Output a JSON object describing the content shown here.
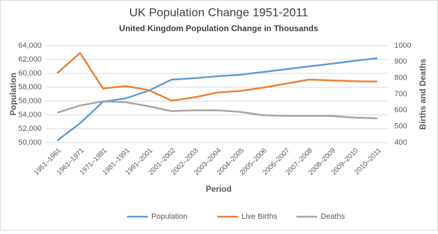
{
  "chart_data": {
    "type": "line",
    "title": "UK Population Change 1951-2011",
    "subtitle": "United Kingdom Population Change in Thousands",
    "x_label": "Period",
    "y_label": "Population",
    "y2_label": "Births and Deaths",
    "categories": [
      "1951–1961",
      "1961–1971",
      "1971–1981",
      "1981–1991",
      "1991–2001",
      "2001–2002",
      "2002–2003",
      "2003–2004",
      "2004–2005",
      "2005–2006",
      "2006–2007",
      "2007–2008",
      "2008–2009",
      "2009–2010",
      "2010–2011"
    ],
    "series": [
      {
        "name": "Population",
        "color": "#5b9bd5",
        "values": [
          50300,
          52800,
          55900,
          56400,
          57500,
          59100,
          59300,
          59600,
          59800,
          60200,
          60600,
          61000,
          61400,
          61800,
          62200
        ]
      },
      {
        "name": "Live Births",
        "color": "#ed7d31",
        "axis": "y2",
        "values": [
          830,
          955,
          735,
          750,
          725,
          660,
          680,
          710,
          720,
          740,
          765,
          790,
          785,
          780,
          778
        ]
      },
      {
        "name": "Deaths",
        "color": "#a5a5a5",
        "axis": "y2",
        "values": [
          585,
          630,
          655,
          650,
          625,
          595,
          600,
          600,
          590,
          570,
          565,
          565,
          565,
          555,
          550
        ]
      }
    ],
    "ylim": [
      50000,
      64000
    ],
    "yticks": [
      {
        "value": 50000,
        "label": "50,000"
      },
      {
        "value": 52000,
        "label": "52,000"
      },
      {
        "value": 54000,
        "label": "54,000"
      },
      {
        "value": 56000,
        "label": "56,000"
      },
      {
        "value": 58000,
        "label": "58,000"
      },
      {
        "value": 60000,
        "label": "60,000"
      },
      {
        "value": 62000,
        "label": "62,000"
      },
      {
        "value": 64000,
        "label": "64,000"
      }
    ],
    "y2lim": [
      400,
      1000
    ],
    "y2ticks": [
      400,
      500,
      600,
      700,
      800,
      900,
      1000
    ],
    "grid": true,
    "legend": "bottom"
  }
}
